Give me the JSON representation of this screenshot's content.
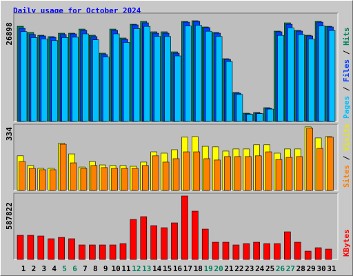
{
  "chart_data": [
    {
      "type": "bar",
      "title": "Daily usage for October 2024",
      "legend_separator": " / ",
      "ylim": [
        0,
        28560
      ],
      "yticks": [
        26898
      ],
      "series": [
        {
          "name": "Pages",
          "color": "#00c0ff",
          "values": [
            24000,
            22400,
            22000,
            21600,
            22400,
            22500,
            23400,
            21800,
            17200,
            23400,
            21100,
            24800,
            25400,
            22700,
            22700,
            17500,
            25500,
            25700,
            24100,
            22700,
            16000,
            7200,
            1900,
            2100,
            3300,
            23000,
            25000,
            23200,
            22000,
            25500,
            24300
          ]
        },
        {
          "name": "Files",
          "color": "#0040ff",
          "values": [
            24870,
            23210,
            22840,
            22470,
            23210,
            23390,
            24310,
            22660,
            17870,
            24310,
            21920,
            25790,
            26340,
            23580,
            23580,
            18240,
            26520,
            26710,
            25050,
            23580,
            16580,
            7550,
            2030,
            2210,
            3500,
            23950,
            25970,
            24130,
            22840,
            26520,
            25240
          ]
        },
        {
          "name": "Hits",
          "color": "#00805c",
          "values": [
            25420,
            23760,
            23030,
            22660,
            23580,
            23580,
            24680,
            23030,
            18240,
            24680,
            22290,
            25970,
            26710,
            23950,
            23950,
            18600,
            26710,
            26898,
            25240,
            23760,
            16760,
            7740,
            2210,
            2400,
            3680,
            24130,
            26340,
            24310,
            23030,
            26710,
            25420
          ]
        }
      ]
    },
    {
      "type": "bar",
      "legend_separator": " / ",
      "ylim": [
        0,
        341
      ],
      "yticks": [
        334
      ],
      "series": [
        {
          "name": "Sites",
          "color": "#ff8000",
          "values": [
            152,
            116,
            109,
            109,
            243,
            145,
            116,
            131,
            120,
            116,
            116,
            116,
            131,
            182,
            149,
            167,
            203,
            203,
            167,
            160,
            178,
            178,
            178,
            182,
            203,
            163,
            174,
            178,
            327,
            221,
            280
          ]
        },
        {
          "name": "Visits",
          "color": "#ffff00",
          "values": [
            182,
            131,
            116,
            116,
            247,
            192,
            123,
            152,
            134,
            131,
            131,
            127,
            149,
            203,
            196,
            214,
            280,
            283,
            232,
            229,
            207,
            218,
            218,
            240,
            240,
            196,
            218,
            218,
            334,
            276,
            283
          ]
        }
      ]
    },
    {
      "type": "bar",
      "ylim": [
        0,
        600600
      ],
      "yticks": [
        587822
      ],
      "categories": [
        "1",
        "2",
        "3",
        "4",
        "5",
        "6",
        "7",
        "8",
        "9",
        "10",
        "11",
        "12",
        "13",
        "14",
        "15",
        "16",
        "17",
        "18",
        "19",
        "20",
        "21",
        "22",
        "23",
        "24",
        "25",
        "26",
        "27",
        "28",
        "29",
        "30",
        "31"
      ],
      "category_colors": [
        "#000000",
        "#000000",
        "#000000",
        "#000000",
        "#00805c",
        "#00805c",
        "#000000",
        "#000000",
        "#000000",
        "#000000",
        "#000000",
        "#00805c",
        "#00805c",
        "#000000",
        "#000000",
        "#000000",
        "#000000",
        "#000000",
        "#00805c",
        "#00805c",
        "#000000",
        "#000000",
        "#000000",
        "#000000",
        "#000000",
        "#00805c",
        "#00805c",
        "#000000",
        "#000000",
        "#000000",
        "#000000"
      ],
      "series": [
        {
          "name": "KBytes",
          "color": "#ff0000",
          "values": [
            223600,
            223600,
            217200,
            191700,
            204400,
            191700,
            134200,
            134200,
            134200,
            134200,
            146900,
            370600,
            396100,
            313100,
            293900,
            338600,
            587822,
            447200,
            281100,
            159700,
            159700,
            134200,
            146900,
            159700,
            146900,
            146900,
            255600,
            159700,
            76700,
            108600,
            95800
          ]
        }
      ]
    }
  ]
}
